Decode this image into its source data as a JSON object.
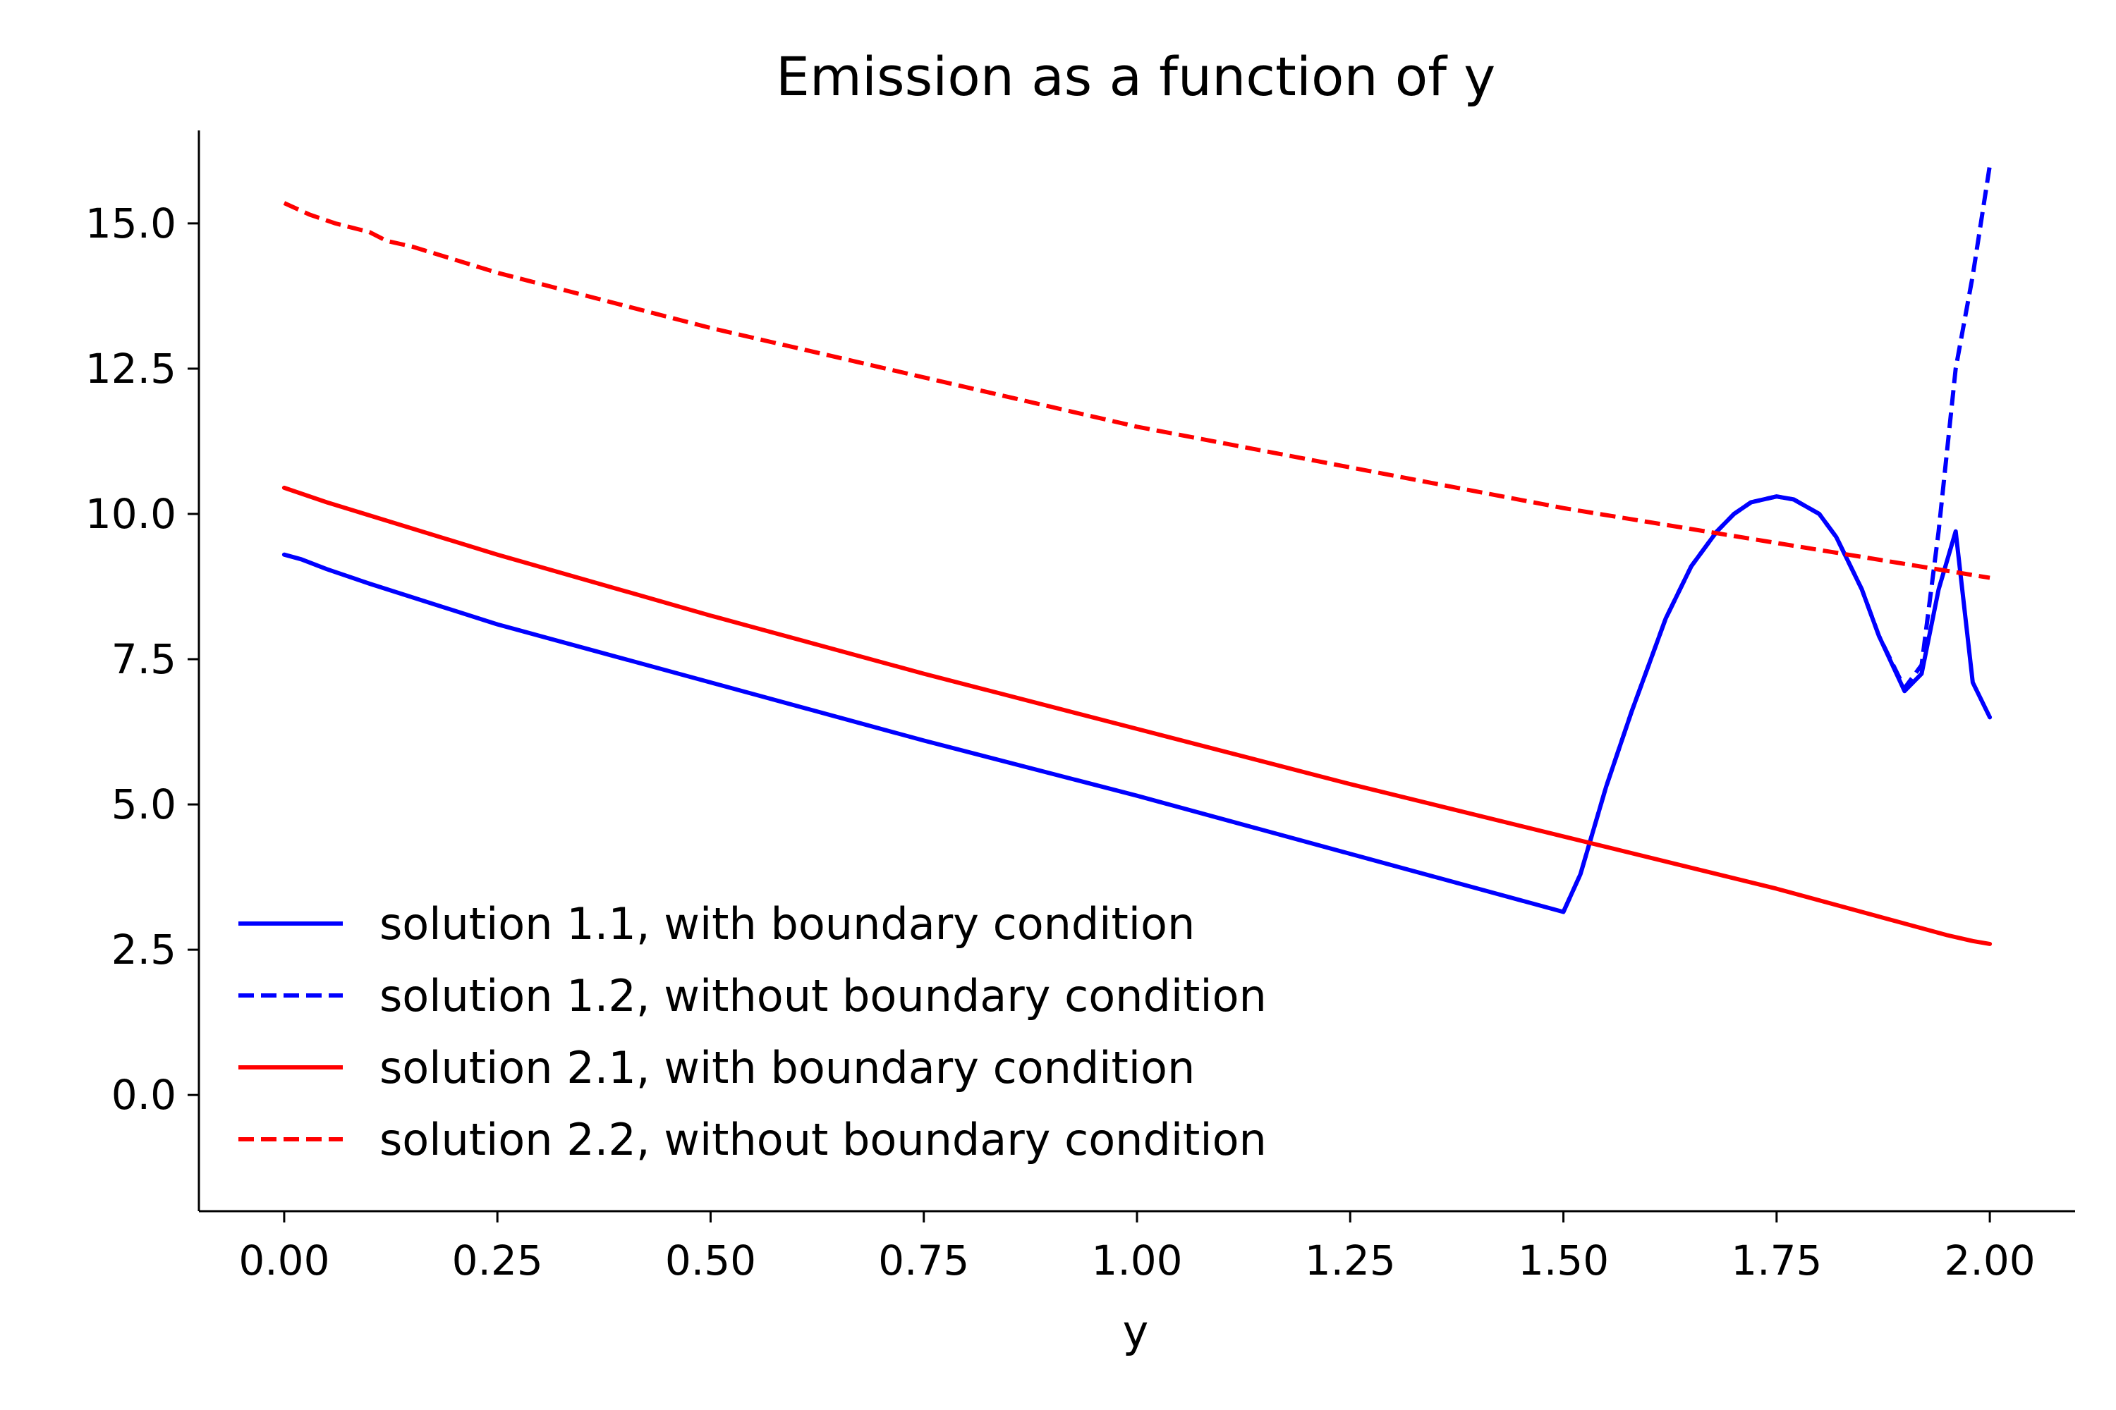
{
  "chart_data": {
    "type": "line",
    "title": "Emission as a function of y",
    "xlabel": "y",
    "ylabel": "",
    "xlim": [
      -0.1,
      2.1
    ],
    "ylim": [
      -2.0,
      16.6
    ],
    "xticks": [
      0.0,
      0.25,
      0.5,
      0.75,
      1.0,
      1.25,
      1.5,
      1.75,
      2.0
    ],
    "xtick_labels": [
      "0.00",
      "0.25",
      "0.50",
      "0.75",
      "1.00",
      "1.25",
      "1.50",
      "1.75",
      "2.00"
    ],
    "yticks": [
      0.0,
      2.5,
      5.0,
      7.5,
      10.0,
      12.5,
      15.0
    ],
    "ytick_labels": [
      "0.0",
      "2.5",
      "5.0",
      "7.5",
      "10.0",
      "12.5",
      "15.0"
    ],
    "grid": false,
    "legend_position": "lower-left",
    "series": [
      {
        "name": "solution 1.1, with boundary condition",
        "color": "#0000ff",
        "dash": "solid",
        "x": [
          0.0,
          0.02,
          0.05,
          0.1,
          0.25,
          0.5,
          0.75,
          1.0,
          1.25,
          1.5,
          1.52,
          1.55,
          1.58,
          1.6,
          1.62,
          1.65,
          1.68,
          1.7,
          1.72,
          1.75,
          1.77,
          1.8,
          1.82,
          1.85,
          1.87,
          1.9,
          1.92,
          1.94,
          1.96,
          1.98,
          2.0
        ],
        "y": [
          9.3,
          9.22,
          9.05,
          8.8,
          8.1,
          7.1,
          6.1,
          5.15,
          4.15,
          3.15,
          3.8,
          5.3,
          6.6,
          7.4,
          8.2,
          9.1,
          9.7,
          10.0,
          10.2,
          10.3,
          10.25,
          10.0,
          9.6,
          8.7,
          7.9,
          6.95,
          7.25,
          8.7,
          9.7,
          7.1,
          6.5
        ]
      },
      {
        "name": "solution 1.2, without boundary condition",
        "color": "#0000ff",
        "dash": "dashed",
        "x": [
          1.5,
          1.52,
          1.55,
          1.58,
          1.6,
          1.62,
          1.65,
          1.68,
          1.7,
          1.72,
          1.75,
          1.77,
          1.8,
          1.82,
          1.85,
          1.87,
          1.9,
          1.92,
          1.94,
          1.96,
          1.98,
          2.0
        ],
        "y": [
          3.15,
          3.8,
          5.3,
          6.6,
          7.4,
          8.2,
          9.1,
          9.7,
          10.0,
          10.2,
          10.3,
          10.25,
          10.0,
          9.6,
          8.7,
          7.9,
          7.0,
          7.4,
          9.7,
          12.5,
          14.1,
          16.0
        ]
      },
      {
        "name": "solution 2.1, with boundary condition",
        "color": "#ff0000",
        "dash": "solid",
        "x": [
          0.0,
          0.05,
          0.25,
          0.5,
          0.75,
          1.0,
          1.25,
          1.5,
          1.75,
          1.9,
          1.95,
          1.98,
          2.0
        ],
        "y": [
          10.45,
          10.2,
          9.3,
          8.25,
          7.25,
          6.3,
          5.35,
          4.45,
          3.55,
          2.95,
          2.75,
          2.65,
          2.6
        ]
      },
      {
        "name": "solution 2.2, without boundary condition",
        "color": "#ff0000",
        "dash": "dashed",
        "x": [
          0.0,
          0.03,
          0.06,
          0.1,
          0.12,
          0.15,
          0.25,
          0.5,
          0.75,
          1.0,
          1.25,
          1.5,
          1.75,
          2.0
        ],
        "y": [
          15.35,
          15.15,
          15.0,
          14.85,
          14.7,
          14.6,
          14.15,
          13.2,
          12.35,
          11.5,
          10.8,
          10.1,
          9.5,
          8.9
        ]
      }
    ]
  }
}
